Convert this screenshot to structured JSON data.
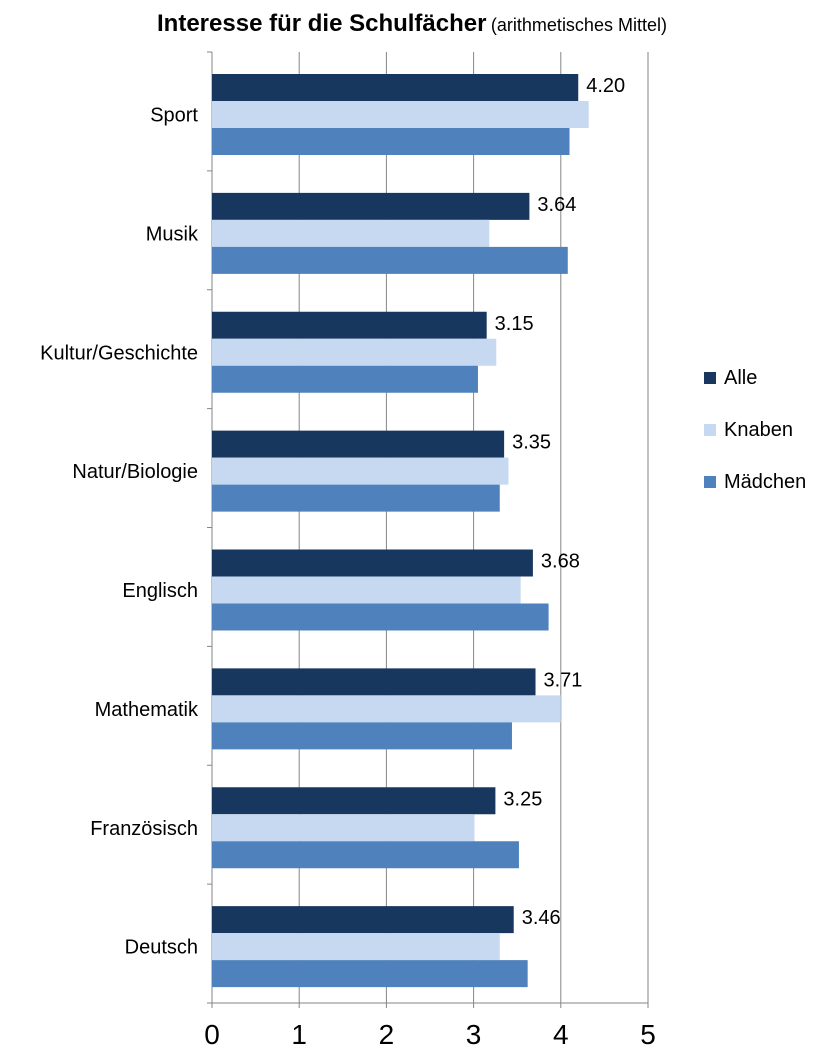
{
  "chart_data": {
    "type": "bar",
    "orientation": "horizontal",
    "title": "Interesse für die Schulfächer",
    "subtitle": "(arithmetisches Mittel)",
    "xlabel": "",
    "ylabel": "",
    "xlim": [
      0,
      5
    ],
    "xticks": [
      "0",
      "1",
      "2",
      "3",
      "4",
      "5"
    ],
    "grid": true,
    "legend_position": "right",
    "categories": [
      "Sport",
      "Musik",
      "Kultur/Geschichte",
      "Natur/Biologie",
      "Englisch",
      "Mathematik",
      "Französisch",
      "Deutsch"
    ],
    "series": [
      {
        "name": "Alle",
        "color": "#17375e",
        "values": [
          4.2,
          3.64,
          3.15,
          3.35,
          3.68,
          3.71,
          3.25,
          3.46
        ],
        "labels": [
          "4.20",
          "3.64",
          "3.15",
          "3.35",
          "3.68",
          "3.71",
          "3.25",
          "3.46"
        ]
      },
      {
        "name": "Knaben",
        "color": "#c6d9f1",
        "values": [
          4.32,
          3.18,
          3.26,
          3.4,
          3.54,
          4.0,
          3.01,
          3.3
        ]
      },
      {
        "name": "Mädchen",
        "color": "#4f81bd",
        "values": [
          4.1,
          4.08,
          3.05,
          3.3,
          3.86,
          3.44,
          3.52,
          3.62
        ]
      }
    ]
  }
}
